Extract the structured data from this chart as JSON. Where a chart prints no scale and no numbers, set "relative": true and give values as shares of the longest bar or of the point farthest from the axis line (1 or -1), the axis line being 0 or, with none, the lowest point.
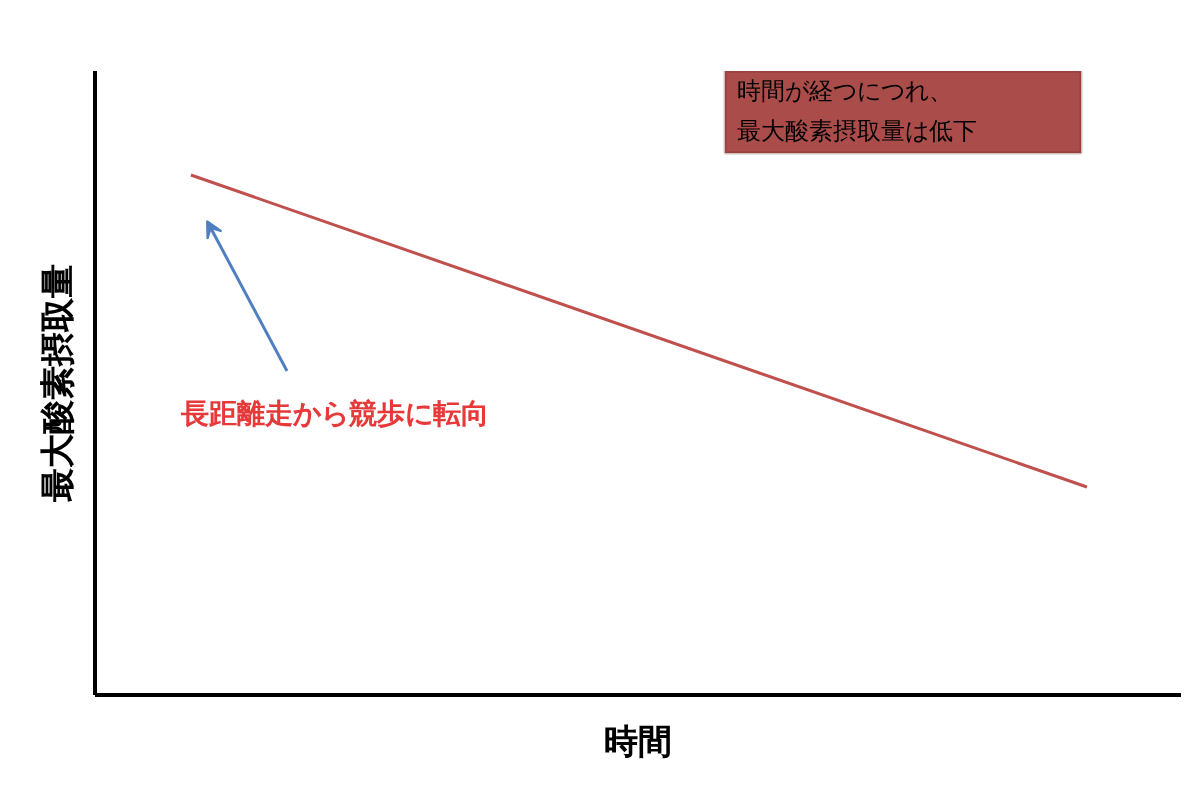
{
  "chart_data": {
    "type": "line",
    "relative": true,
    "categories": [
      null,
      null
    ],
    "series": [
      {
        "color": "#c0504d",
        "values": [
          1,
          0.4
        ]
      }
    ],
    "xlabel": "時間",
    "ylabel": "最大酸素摂取量",
    "annotations": [
      "時間が経つにつれ、",
      "最大酸素摂取量は低下",
      "長距離走から競歩に転向"
    ],
    "marker": "none",
    "line_style": "solid"
  }
}
